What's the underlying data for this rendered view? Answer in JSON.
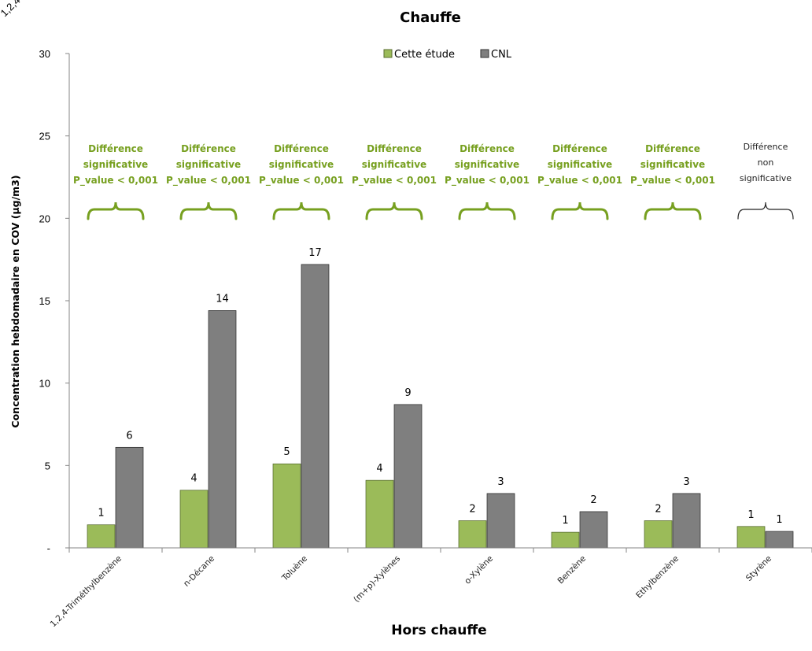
{
  "colors": {
    "series1": "#9bbb59",
    "series2": "#7f7f7f",
    "annotation_sig": "#77a020",
    "annotation_ns": "#222222",
    "axis": "#868686"
  },
  "chart_data": {
    "type": "bar",
    "title": "Chauffe",
    "xlabel": "Hors chauffe",
    "ylabel": "Concentration hebdomadaire en COV (µg/m3)",
    "ylim": [
      0,
      30
    ],
    "yticks": [
      0,
      5,
      10,
      15,
      20,
      25,
      30
    ],
    "ytick_labels": [
      "-",
      "5",
      "10",
      "15",
      "20",
      "25",
      "30"
    ],
    "corner_label": "1,2,4-",
    "grid": false,
    "legend_position": "top",
    "categories": [
      "1,2,4-Triméthylbenzène",
      "n-Décane",
      "Toluène",
      "(m+p)-Xylènes",
      "o-Xylène",
      "Benzène",
      "Ethylbenzène",
      "Styrène"
    ],
    "series": [
      {
        "name": "Cette étude",
        "values": [
          1.4,
          3.5,
          5.1,
          4.1,
          1.65,
          0.95,
          1.65,
          1.3
        ],
        "labels": [
          "1",
          "4",
          "5",
          "4",
          "2",
          "1",
          "2",
          "1"
        ]
      },
      {
        "name": "CNL",
        "values": [
          6.1,
          14.4,
          17.2,
          8.7,
          3.3,
          2.2,
          3.3,
          1.0
        ],
        "labels": [
          "6",
          "14",
          "17",
          "9",
          "3",
          "2",
          "3",
          "1"
        ]
      }
    ],
    "annotations": [
      {
        "lines": [
          "Différence",
          "significative",
          "P_value < 0,001"
        ],
        "significant": true
      },
      {
        "lines": [
          "Différence",
          "significative",
          "P_value < 0,001"
        ],
        "significant": true
      },
      {
        "lines": [
          "Différence",
          "significative",
          "P_value < 0,001"
        ],
        "significant": true
      },
      {
        "lines": [
          "Différence",
          "significative",
          "P_value < 0,001"
        ],
        "significant": true
      },
      {
        "lines": [
          "Différence",
          "significative",
          "P_value < 0,001"
        ],
        "significant": true
      },
      {
        "lines": [
          "Différence",
          "significative",
          "P_value < 0,001"
        ],
        "significant": true
      },
      {
        "lines": [
          "Différence",
          "significative",
          "P_value < 0,001"
        ],
        "significant": true
      },
      {
        "lines": [
          "Différence",
          "non",
          "significative"
        ],
        "significant": false
      }
    ]
  }
}
